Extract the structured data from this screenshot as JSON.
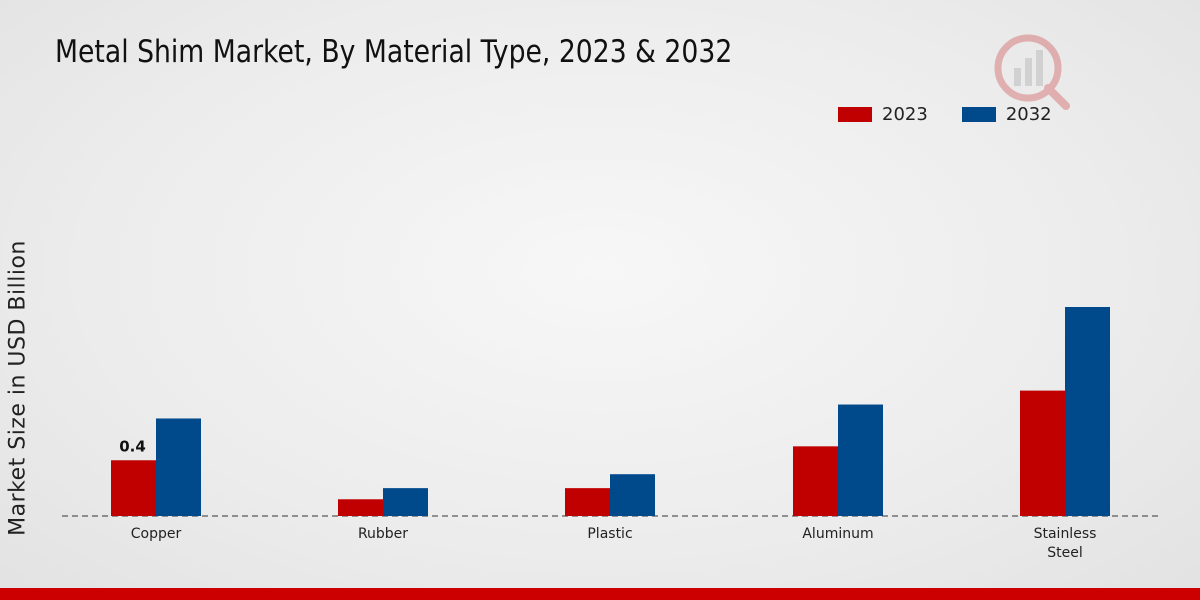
{
  "title": "Metal Shim Market, By Material Type, 2023 & 2032",
  "ylabel": "Market Size in USD Billion",
  "colors": {
    "2023": "#c00000",
    "2032": "#004a8c",
    "bottom_bar": "#cc0000"
  },
  "logo_icon": "watermark-logo-icon",
  "chart_data": {
    "type": "bar",
    "categories": [
      "Copper",
      "Rubber",
      "Plastic",
      "Aluminum",
      "Stainless Steel"
    ],
    "category_lines": [
      [
        "Copper"
      ],
      [
        "Rubber"
      ],
      [
        "Plastic"
      ],
      [
        "Aluminum"
      ],
      [
        "Stainless",
        "Steel"
      ]
    ],
    "series": [
      {
        "name": "2023",
        "values": [
          0.4,
          0.12,
          0.2,
          0.5,
          0.9
        ]
      },
      {
        "name": "2032",
        "values": [
          0.7,
          0.2,
          0.3,
          0.8,
          1.5
        ]
      }
    ],
    "data_labels": [
      {
        "series": 0,
        "index": 0,
        "text": "0.4"
      }
    ],
    "ylim": [
      0,
      2.0
    ],
    "legend_position": "top-right",
    "grid": false
  }
}
